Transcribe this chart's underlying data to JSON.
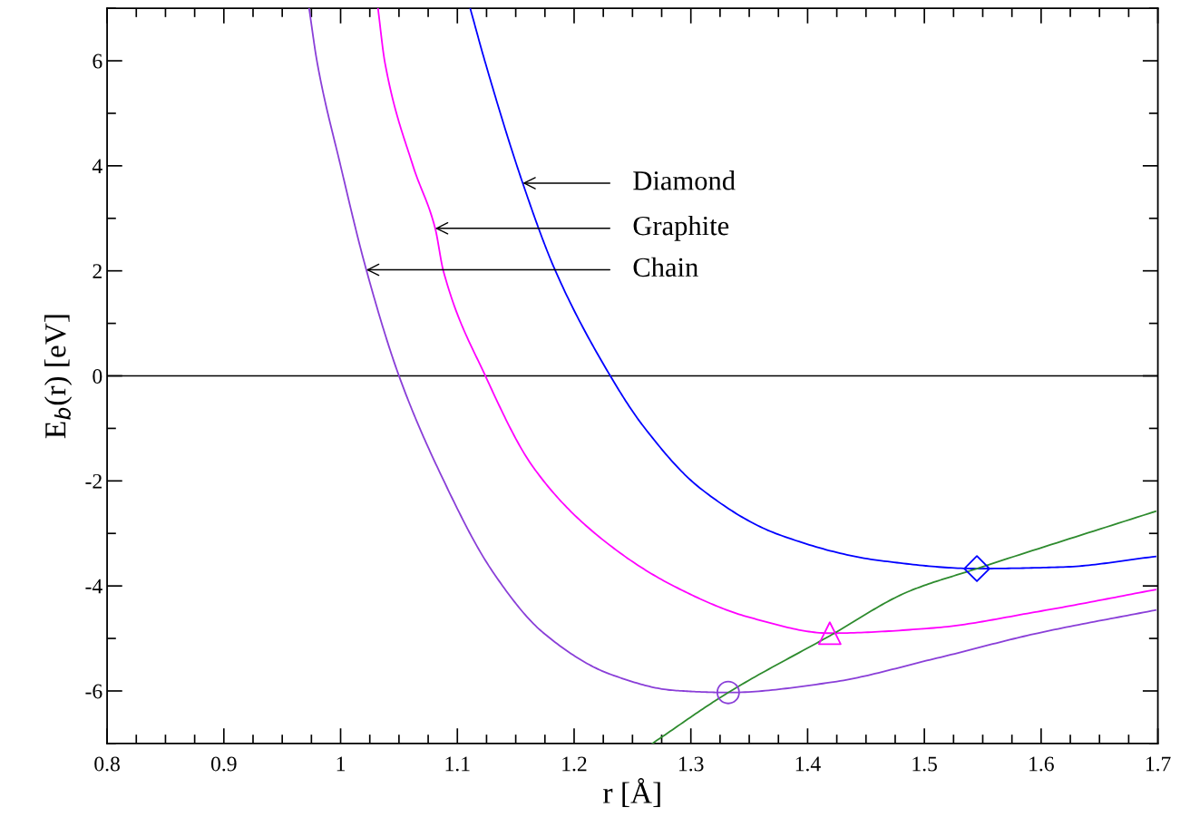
{
  "chart_data": {
    "type": "line",
    "xlabel": "r [Å]",
    "ylabel": "E$_{b}$(r) [eV]",
    "xlim": [
      0.8,
      1.7
    ],
    "ylim": [
      -7,
      7
    ],
    "xticks": [
      0.8,
      0.9,
      1,
      1.1,
      1.2,
      1.3,
      1.4,
      1.5,
      1.6,
      1.7
    ],
    "yticks": [
      -6,
      -4,
      -2,
      0,
      2,
      4,
      6
    ],
    "grid": false,
    "marker": "none",
    "line_style": "solid",
    "ref_lines": [
      {
        "axis": "y",
        "value": 0,
        "color": "#000000"
      }
    ],
    "annotations": [
      {
        "text": "Diamond",
        "x": 1.156,
        "y": 3.67
      },
      {
        "text": "Graphite",
        "x": 1.081,
        "y": 2.81
      },
      {
        "text": "Chain",
        "x": 1.022,
        "y": 2.02
      }
    ],
    "series": [
      {
        "color": "#8a3fd8",
        "x": [
          0.973,
          0.98,
          1.0,
          1.022,
          1.05,
          1.085,
          1.13,
          1.174,
          1.232,
          1.286,
          1.332,
          1.419,
          1.508,
          1.597,
          1.698
        ],
        "values": [
          7,
          5.96,
          4,
          2.02,
          0,
          -1.84,
          -3.72,
          -4.9,
          -5.69,
          -5.99,
          -6.03,
          -5.84,
          -5.39,
          -4.9,
          -4.46
        ]
      },
      {
        "color": "#ff00ff",
        "x": [
          1.032,
          1.038,
          1.062,
          1.081,
          1.088,
          1.124,
          1.165,
          1.219,
          1.286,
          1.352,
          1.419,
          1.508,
          1.597,
          1.698
        ],
        "values": [
          7,
          5.96,
          4,
          2.81,
          2,
          0,
          -1.74,
          -3.02,
          -4.01,
          -4.61,
          -4.9,
          -4.8,
          -4.49,
          -4.07
        ]
      },
      {
        "color": "#0000ff",
        "x": [
          1.111,
          1.124,
          1.156,
          1.184,
          1.231,
          1.259,
          1.308,
          1.375,
          1.463,
          1.545,
          1.619,
          1.698
        ],
        "values": [
          7,
          5.96,
          3.67,
          2,
          0,
          -0.95,
          -2.14,
          -3.02,
          -3.52,
          -3.67,
          -3.64,
          -3.44
        ]
      },
      {
        "color": "#2e8b2e",
        "x": [
          1.267,
          1.332,
          1.419,
          1.486,
          1.545,
          1.698
        ],
        "values": [
          -7,
          -6.03,
          -4.95,
          -4.11,
          -3.67,
          -2.58
        ]
      },
      {
        "type": "scatter",
        "color": "#8a3fd8",
        "marker": "circle",
        "x": [
          1.332
        ],
        "values": [
          -6.03
        ]
      },
      {
        "type": "scatter",
        "color": "#ff00ff",
        "marker": "triangle",
        "x": [
          1.419
        ],
        "values": [
          -4.9
        ]
      },
      {
        "type": "scatter",
        "color": "#0000ff",
        "marker": "diamond",
        "x": [
          1.545
        ],
        "values": [
          -3.67
        ]
      }
    ]
  }
}
